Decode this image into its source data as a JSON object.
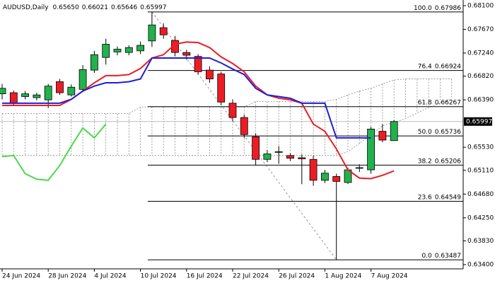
{
  "chart_data": {
    "type": "candlestick",
    "header": {
      "symbol": "AUDUSD,Daily",
      "ohlc": [
        "0.65650",
        "0.66021",
        "0.65646",
        "0.65997"
      ]
    },
    "categories": [
      "24 Jun 2024",
      null,
      null,
      null,
      "28 Jun 2024",
      null,
      null,
      null,
      "4 Jul 2024",
      null,
      null,
      null,
      "10 Jul 2024",
      null,
      null,
      null,
      "16 Jul 2024",
      null,
      null,
      null,
      "22 Jul 2024",
      null,
      null,
      null,
      "26 Jul 2024",
      null,
      null,
      null,
      "1 Aug 2024",
      null,
      null,
      null,
      "7 Aug 2024",
      null,
      null,
      null,
      null,
      null,
      null,
      null
    ],
    "open": [
      0.665,
      0.6652,
      0.6645,
      0.6643,
      0.6639,
      0.6672,
      0.6648,
      0.6658,
      0.6693,
      0.6716,
      0.6726,
      0.6725,
      0.6728,
      0.6746,
      0.677,
      0.6747,
      0.6725,
      0.6718,
      0.6693,
      0.6686,
      0.6633,
      0.6607,
      0.6572,
      0.6531,
      0.6544,
      0.6538,
      0.6534,
      0.6531,
      0.6493,
      0.65,
      0.6489,
      0.6515,
      0.6512,
      0.6582,
      0.6565,
      null,
      null,
      null,
      null,
      null
    ],
    "high": [
      0.6668,
      0.6656,
      0.6655,
      0.6652,
      0.6668,
      0.6677,
      0.6667,
      0.6702,
      0.6728,
      0.675,
      0.6736,
      0.6738,
      0.6745,
      0.67986,
      0.6778,
      0.6755,
      0.673,
      0.6722,
      0.67,
      0.669,
      0.664,
      0.6612,
      0.6578,
      0.6548,
      0.6555,
      0.6542,
      0.654,
      0.6538,
      0.6512,
      0.6505,
      0.6516,
      0.6522,
      0.659,
      0.6595,
      0.66021,
      null,
      null,
      null,
      null,
      null
    ],
    "low": [
      0.664,
      0.6628,
      0.664,
      0.6638,
      0.6624,
      0.6648,
      0.6645,
      0.6653,
      0.6688,
      0.6703,
      0.672,
      0.672,
      0.6722,
      0.6735,
      0.675,
      0.6718,
      0.6712,
      0.6685,
      0.667,
      0.663,
      0.66,
      0.657,
      0.652,
      0.6526,
      0.6523,
      0.6528,
      0.6486,
      0.6483,
      0.6488,
      0.63487,
      0.6486,
      0.6508,
      0.6505,
      0.6562,
      0.65646,
      null,
      null,
      null,
      null,
      null
    ],
    "close": [
      0.666,
      0.6633,
      0.665,
      0.6648,
      0.6664,
      0.6652,
      0.6662,
      0.6694,
      0.6721,
      0.674,
      0.6731,
      0.6734,
      0.6738,
      0.6775,
      0.6757,
      0.6725,
      0.672,
      0.669,
      0.6677,
      0.6635,
      0.6607,
      0.6576,
      0.6531,
      0.6541,
      0.6545,
      0.6533,
      0.6532,
      0.6493,
      0.6506,
      0.6491,
      0.6512,
      0.6516,
      0.6586,
      0.6566,
      0.65997,
      null,
      null,
      null,
      null,
      null
    ],
    "up_color": "#22b14c",
    "down_color": "#ed1c24",
    "lines": [
      {
        "color": "#ed1c24",
        "values": [
          0.6629,
          0.6629,
          0.6629,
          0.6629,
          0.6629,
          0.6629,
          0.664,
          0.6655,
          0.667,
          0.6683,
          0.6683,
          0.6685,
          0.6696,
          0.6715,
          0.6721,
          0.674,
          0.6744,
          0.6743,
          0.6734,
          0.6717,
          0.6705,
          0.669,
          0.6664,
          0.6648,
          0.6642,
          0.6639,
          0.6633,
          0.6595,
          0.6582,
          0.655,
          0.6512,
          0.6497,
          0.6496,
          0.6502,
          0.651,
          null,
          null,
          null,
          null,
          null
        ]
      },
      {
        "color": "#1e1ed8",
        "values": [
          0.6633,
          0.6633,
          0.6633,
          0.6633,
          0.6633,
          0.6633,
          0.664,
          0.6655,
          0.6664,
          0.667,
          0.667,
          0.6672,
          0.6677,
          0.6715,
          0.6715,
          0.6715,
          0.6715,
          0.6715,
          0.6715,
          0.6706,
          0.6695,
          0.6685,
          0.666,
          0.6648,
          0.6645,
          0.6642,
          0.6633,
          0.6633,
          0.6633,
          0.657,
          0.657,
          0.657,
          0.657,
          null,
          null,
          null,
          null,
          null,
          null,
          null
        ]
      },
      {
        "color": "#4cd84c",
        "values": [
          0.6536,
          0.6538,
          0.6505,
          0.6495,
          0.6493,
          0.652,
          0.6555,
          0.6588,
          0.657,
          0.6595,
          null,
          null,
          null,
          null,
          null,
          null,
          null,
          null,
          null,
          null,
          null,
          null,
          null,
          null,
          null,
          null,
          null,
          null,
          null,
          null,
          null,
          null,
          null,
          null,
          null,
          null,
          null,
          null,
          null,
          null
        ]
      }
    ],
    "cloud": {
      "color": "#888888",
      "upper": [
        0.6614,
        0.6614,
        0.6614,
        0.6614,
        0.6614,
        0.6614,
        0.6614,
        0.6614,
        0.6614,
        0.6614,
        0.6614,
        0.6614,
        0.6626,
        0.6626,
        0.6626,
        0.6626,
        0.6626,
        0.6626,
        0.6626,
        0.6626,
        0.6626,
        0.6626,
        0.6636,
        0.6636,
        0.6636,
        0.6636,
        0.6636,
        0.6636,
        0.6636,
        0.664,
        0.6648,
        0.6655,
        0.666,
        0.6668,
        0.6675,
        0.6677,
        0.6677,
        0.6677,
        0.6677,
        0.6677
      ],
      "lower": [
        0.6538,
        0.6538,
        0.6538,
        0.6538,
        0.6538,
        0.6538,
        0.6538,
        0.6538,
        0.6538,
        0.6538,
        0.6538,
        0.6538,
        0.6538,
        0.6538,
        0.6538,
        0.6538,
        0.6538,
        0.6538,
        0.6538,
        0.6538,
        0.6538,
        0.6538,
        0.6538,
        0.6538,
        0.6538,
        0.6538,
        0.6538,
        0.6538,
        0.6538,
        0.6538,
        0.6545,
        0.656,
        0.6575,
        0.6592,
        0.6598,
        0.6605,
        0.6615,
        0.6625,
        0.6633,
        0.664
      ]
    },
    "fib_levels": [
      {
        "ratio": "100.0",
        "price": 0.67986
      },
      {
        "ratio": "76.4",
        "price": 0.66924
      },
      {
        "ratio": "61.8",
        "price": 0.66267
      },
      {
        "ratio": "50.0",
        "price": 0.65736
      },
      {
        "ratio": "38.2",
        "price": 0.65206
      },
      {
        "ratio": "23.6",
        "price": 0.64549
      },
      {
        "ratio": "0.0",
        "price": 0.63487
      }
    ],
    "last_price": {
      "value": 0.65997,
      "label": "0.65997"
    },
    "ylim": [
      0.634,
      0.681
    ],
    "yticks": [
      {
        "value": 0.681,
        "label": "0.68100"
      },
      {
        "value": 0.6767,
        "label": "0.67670"
      },
      {
        "value": 0.6724,
        "label": "0.67240"
      },
      {
        "value": 0.6682,
        "label": "0.66820"
      },
      {
        "value": 0.6639,
        "label": "0.66390"
      },
      {
        "value": 0.6553,
        "label": "0.65530"
      },
      {
        "value": 0.6511,
        "label": "0.65110"
      },
      {
        "value": 0.6468,
        "label": "0.64680"
      },
      {
        "value": 0.6425,
        "label": "0.64250"
      },
      {
        "value": 0.6383,
        "label": "0.63830"
      },
      {
        "value": 0.634,
        "label": "0.63400"
      }
    ]
  }
}
